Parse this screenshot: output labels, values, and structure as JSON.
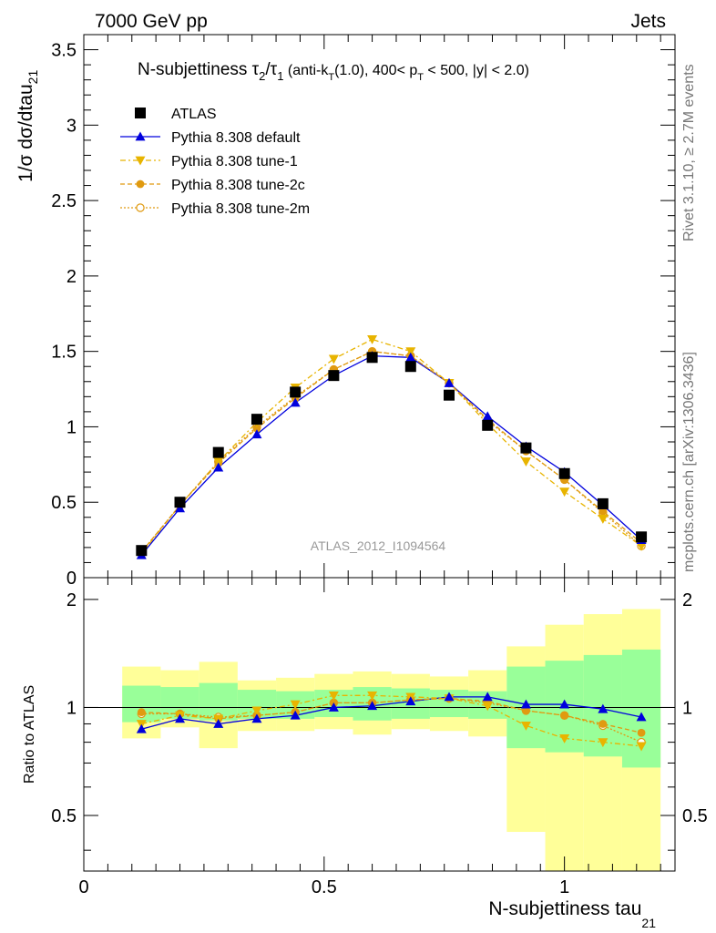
{
  "header": {
    "left": "7000 GeV pp",
    "right": "Jets"
  },
  "side_labels": {
    "rivet": "Rivet 3.1.10, ≥ 2.7M events",
    "mcplots": "mcplots.cern.ch [arXiv:1306.3436]"
  },
  "chart_data": {
    "type": "line",
    "title": {
      "main": "N-subjettiness τ",
      "main_sub": "2",
      "slash": "/τ",
      "slash_sub": "1",
      "cut_a": " (anti-k",
      "cut_a_sub": "T",
      "cut_b": "(1.0), 400< p",
      "cut_b_sub": "T",
      "cut_c": " < 500, |y| < 2.0)"
    },
    "ylabel": "1/σ dσ/dtau",
    "ylabel_sub": "21",
    "xlabel": "N-subjettiness tau",
    "xlabel_sub": "21",
    "ratio_ylabel": "Ratio to ATLAS",
    "analysis_id": "ATLAS_2012_I1094564",
    "xlim": [
      0,
      1.23
    ],
    "ylim": [
      0,
      3.6
    ],
    "ratio_ylim": [
      0.35,
      2.3
    ],
    "x_ticks": [
      "0",
      "0.5",
      "1"
    ],
    "y_ticks": [
      "0",
      "0.5",
      "1",
      "1.5",
      "2",
      "2.5",
      "3",
      "3.5"
    ],
    "ratio_ticks": [
      "0.5",
      "1",
      "2"
    ],
    "bins": [
      0.08,
      0.16,
      0.24,
      0.32,
      0.4,
      0.48,
      0.56,
      0.64,
      0.72,
      0.8,
      0.88,
      0.96,
      1.04,
      1.12,
      1.2
    ],
    "x": [
      0.12,
      0.2,
      0.28,
      0.36,
      0.44,
      0.52,
      0.6,
      0.68,
      0.76,
      0.84,
      0.92,
      1.0,
      1.08,
      1.16
    ],
    "ratio_band_inner": [
      [
        0.91,
        1.15
      ],
      [
        0.93,
        1.14
      ],
      [
        0.92,
        1.17
      ],
      [
        0.93,
        1.12
      ],
      [
        0.93,
        1.11
      ],
      [
        0.94,
        1.12
      ],
      [
        0.92,
        1.14
      ],
      [
        0.93,
        1.13
      ],
      [
        0.94,
        1.12
      ],
      [
        0.93,
        1.11
      ],
      [
        0.77,
        1.3
      ],
      [
        0.75,
        1.35
      ],
      [
        0.73,
        1.4
      ],
      [
        0.68,
        1.45
      ]
    ],
    "ratio_band_outer": [
      [
        0.82,
        1.3
      ],
      [
        0.88,
        1.27
      ],
      [
        0.77,
        1.34
      ],
      [
        0.86,
        1.19
      ],
      [
        0.86,
        1.21
      ],
      [
        0.87,
        1.24
      ],
      [
        0.84,
        1.26
      ],
      [
        0.87,
        1.24
      ],
      [
        0.86,
        1.22
      ],
      [
        0.83,
        1.27
      ],
      [
        0.45,
        1.48
      ],
      [
        0.35,
        1.7
      ],
      [
        0.35,
        1.82
      ],
      [
        0.35,
        1.88
      ]
    ],
    "series": [
      {
        "name": "ATLAS",
        "color": "#000000",
        "marker": "square",
        "values": [
          0.18,
          0.5,
          0.83,
          1.05,
          1.23,
          1.34,
          1.46,
          1.4,
          1.21,
          1.01,
          0.86,
          0.69,
          0.49,
          0.27
        ]
      },
      {
        "name": "Pythia 8.308 default",
        "color": "#0000dd",
        "marker": "triangle-up",
        "dash": "",
        "values": [
          0.15,
          0.46,
          0.73,
          0.95,
          1.16,
          1.34,
          1.47,
          1.46,
          1.29,
          1.07,
          0.87,
          0.7,
          0.48,
          0.25
        ],
        "ratio": [
          0.87,
          0.93,
          0.9,
          0.93,
          0.95,
          1.0,
          1.01,
          1.04,
          1.07,
          1.07,
          1.02,
          1.02,
          0.99,
          0.94
        ]
      },
      {
        "name": "Pythia 8.308 tune-1",
        "color": "#e8b400",
        "marker": "triangle-down",
        "dash": "6,3,2,3",
        "values": [
          0.16,
          0.48,
          0.77,
          1.03,
          1.26,
          1.45,
          1.58,
          1.5,
          1.29,
          1.02,
          0.77,
          0.57,
          0.39,
          0.21
        ],
        "ratio": [
          0.9,
          0.95,
          0.93,
          0.98,
          1.02,
          1.08,
          1.08,
          1.07,
          1.06,
          1.01,
          0.89,
          0.82,
          0.8,
          0.78
        ]
      },
      {
        "name": "Pythia 8.308 tune-2c",
        "color": "#e09a10",
        "marker": "circle",
        "dash": "5,3",
        "values": [
          0.17,
          0.48,
          0.76,
          0.99,
          1.19,
          1.38,
          1.5,
          1.47,
          1.29,
          1.05,
          0.84,
          0.65,
          0.44,
          0.23
        ],
        "ratio": [
          0.97,
          0.96,
          0.93,
          0.95,
          0.97,
          1.03,
          1.03,
          1.05,
          1.06,
          1.04,
          0.98,
          0.95,
          0.9,
          0.85
        ]
      },
      {
        "name": "Pythia 8.308 tune-2m",
        "color": "#e09a10",
        "marker": "circle-open",
        "dash": "2,2",
        "values": [
          0.17,
          0.48,
          0.77,
          1.0,
          1.2,
          1.38,
          1.5,
          1.47,
          1.29,
          1.04,
          0.84,
          0.65,
          0.43,
          0.21
        ],
        "ratio": [
          0.96,
          0.96,
          0.94,
          0.95,
          0.97,
          1.03,
          1.03,
          1.05,
          1.06,
          1.03,
          0.98,
          0.95,
          0.89,
          0.8
        ]
      }
    ],
    "band_colors": {
      "inner": "#99ff99",
      "outer": "#ffff99"
    }
  }
}
